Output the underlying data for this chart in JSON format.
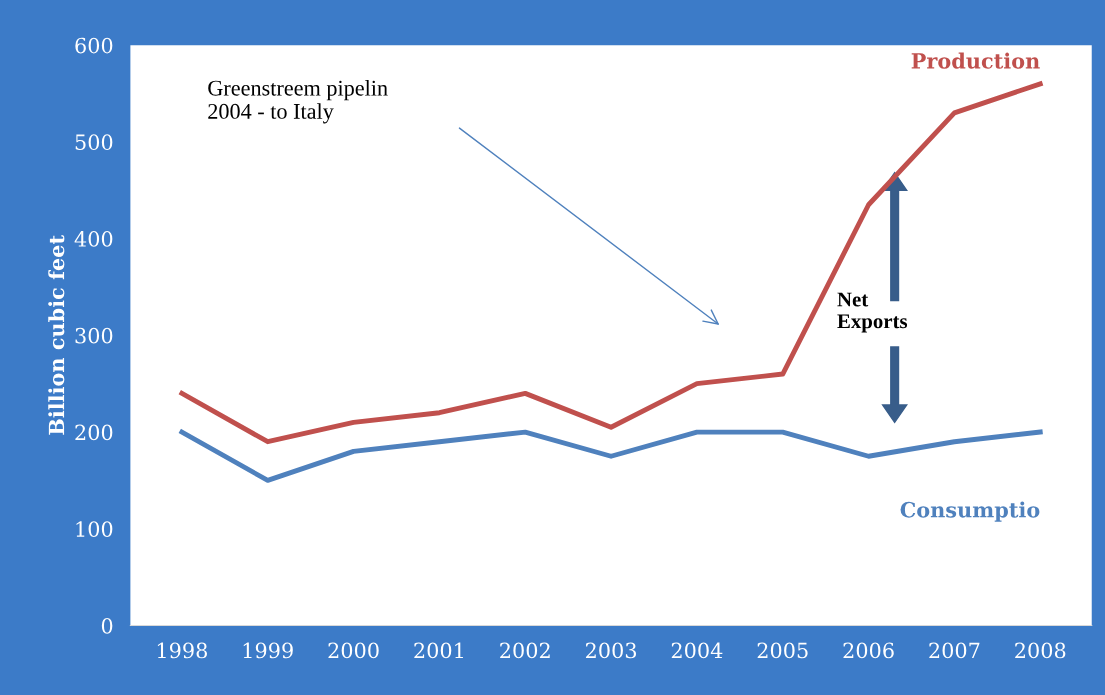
{
  "chart_data": {
    "type": "line",
    "ylabel": "Billion cubic feet",
    "categories": [
      "1998",
      "1999",
      "2000",
      "2001",
      "2002",
      "2003",
      "2004",
      "2005",
      "2006",
      "2007",
      "2008"
    ],
    "series": [
      {
        "name": "Production",
        "color": "#c0504d",
        "values": [
          240,
          190,
          210,
          220,
          240,
          205,
          250,
          260,
          435,
          530,
          560
        ]
      },
      {
        "name": "Consumptio",
        "color": "#4f81bd",
        "values": [
          200,
          150,
          180,
          190,
          200,
          175,
          200,
          200,
          175,
          190,
          200
        ]
      }
    ],
    "ylim": [
      0,
      600
    ],
    "yticks": [
      0,
      100,
      200,
      300,
      400,
      500,
      600
    ],
    "grid": false,
    "legend": false,
    "marker": "none",
    "line_style": "solid",
    "annotations": [
      "Greenstreem pipelin\n2004 - to Italy",
      "Net\nExports"
    ]
  }
}
